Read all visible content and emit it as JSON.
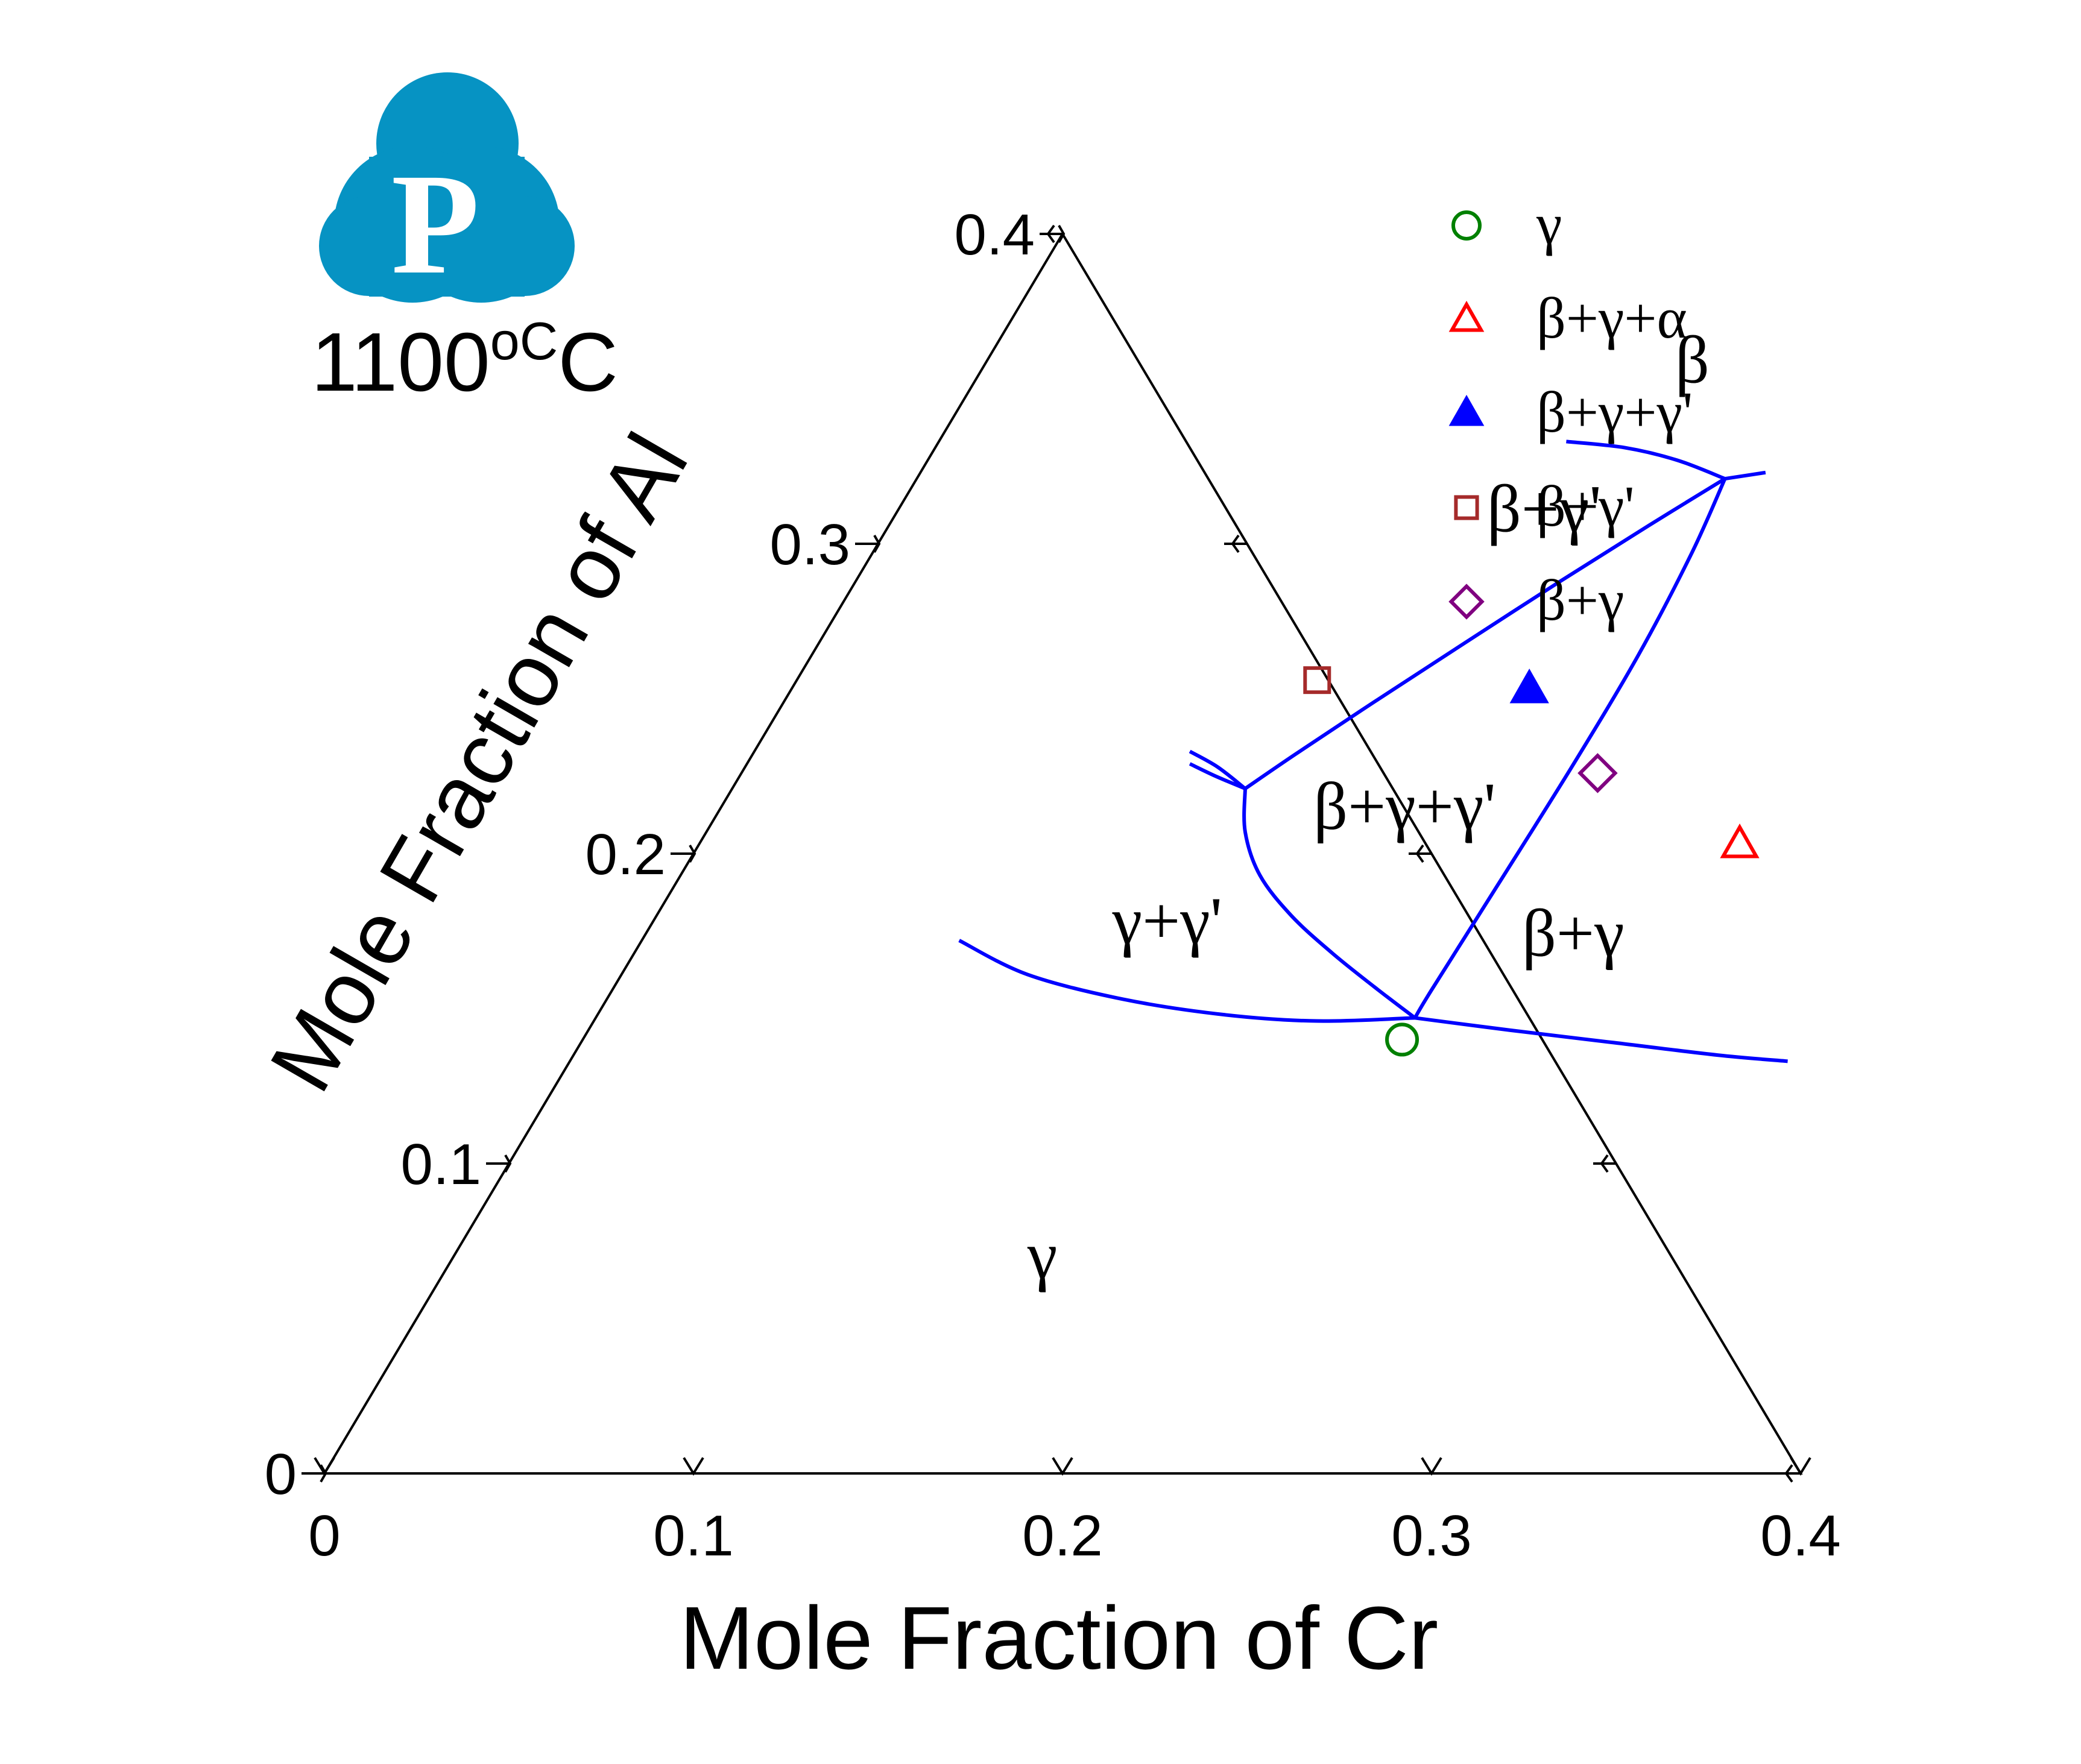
{
  "chart_data": {
    "type": "scatter",
    "subtype": "ternary-phase-diagram",
    "title": "1100°C",
    "temperature_value": "1100",
    "temperature_unit": "oC",
    "xlabel": "Mole Fraction of Cr",
    "ylabel": "Mole Fraction of Al",
    "xlim": [
      0,
      0.4
    ],
    "ylim": [
      0,
      0.4
    ],
    "x_ticks": [
      "0",
      "0.1",
      "0.2",
      "0.3",
      "0.4"
    ],
    "y_ticks": [
      "0",
      "0.1",
      "0.2",
      "0.3",
      "0.4"
    ],
    "grid": false,
    "legend_position": "top-right",
    "logo_letter": "P",
    "logo_color": "#0693c3",
    "axis_color": "#000000",
    "boundary_color": "#0000ff",
    "series": [
      {
        "name": "γ",
        "marker": "circle-open",
        "color": "#008000",
        "points": [
          {
            "cr": 0.222,
            "al": 0.14
          }
        ]
      },
      {
        "name": "β+γ+α",
        "marker": "triangle-open",
        "color": "#ff0000",
        "points": [
          {
            "cr": 0.282,
            "al": 0.203
          }
        ]
      },
      {
        "name": "β+γ+γ'",
        "marker": "triangle-filled",
        "color": "#0000ff",
        "points": [
          {
            "cr": 0.2,
            "al": 0.253
          }
        ]
      },
      {
        "name": "β+γ'",
        "marker": "square-open",
        "color": "#a52a2a",
        "points": [
          {
            "cr": 0.141,
            "al": 0.256
          }
        ]
      },
      {
        "name": "β+γ",
        "marker": "diamond-open",
        "color": "#800080",
        "points": [
          {
            "cr": 0.232,
            "al": 0.226
          }
        ]
      }
    ],
    "phase_boundaries": [
      {
        "name": "beta-upper",
        "points": [
          [
            0.17,
            0.333
          ],
          [
            0.187,
            0.331
          ],
          [
            0.203,
            0.327
          ],
          [
            0.219,
            0.321
          ]
        ]
      },
      {
        "name": "beta-right",
        "points": [
          [
            0.219,
            0.321
          ],
          [
            0.229,
            0.323
          ]
        ]
      },
      {
        "name": "tie-upper",
        "points": [
          [
            0.219,
            0.321
          ],
          [
            0.206,
            0.306
          ],
          [
            0.191,
            0.288
          ],
          [
            0.175,
            0.268
          ],
          [
            0.16,
            0.249
          ],
          [
            0.147,
            0.232
          ],
          [
            0.139,
            0.221
          ]
        ]
      },
      {
        "name": "tie-right",
        "points": [
          [
            0.219,
            0.321
          ],
          [
            0.222,
            0.297
          ],
          [
            0.224,
            0.264
          ],
          [
            0.224,
            0.228
          ],
          [
            0.223,
            0.19
          ],
          [
            0.222,
            0.156
          ],
          [
            0.222,
            0.147
          ]
        ]
      },
      {
        "name": "tie-lower",
        "points": [
          [
            0.139,
            0.221
          ],
          [
            0.146,
            0.207
          ],
          [
            0.157,
            0.193
          ],
          [
            0.172,
            0.18
          ],
          [
            0.189,
            0.168
          ],
          [
            0.206,
            0.157
          ],
          [
            0.222,
            0.147
          ]
        ]
      },
      {
        "name": "left-sliver-a",
        "points": [
          [
            0.118,
            0.233
          ],
          [
            0.128,
            0.228
          ],
          [
            0.139,
            0.221
          ]
        ]
      },
      {
        "name": "left-sliver-b",
        "points": [
          [
            0.12,
            0.229
          ],
          [
            0.129,
            0.225
          ],
          [
            0.139,
            0.221
          ]
        ]
      },
      {
        "name": "gamma-left",
        "points": [
          [
            0.086,
            0.172
          ],
          [
            0.11,
            0.161
          ],
          [
            0.14,
            0.153
          ],
          [
            0.17,
            0.148
          ],
          [
            0.196,
            0.146
          ],
          [
            0.222,
            0.147
          ]
        ]
      },
      {
        "name": "gamma-right",
        "points": [
          [
            0.222,
            0.147
          ],
          [
            0.25,
            0.143
          ],
          [
            0.28,
            0.139
          ],
          [
            0.31,
            0.135
          ],
          [
            0.33,
            0.133
          ]
        ]
      }
    ],
    "region_labels": [
      {
        "text": "β",
        "cr": 0.19,
        "al": 0.352
      },
      {
        "text": "β+γ'",
        "cr": 0.163,
        "al": 0.304
      },
      {
        "text": "β+γ+γ'",
        "cr": 0.164,
        "al": 0.208
      },
      {
        "text": "γ+γ'",
        "cr": 0.128,
        "al": 0.171
      },
      {
        "text": "β+γ",
        "cr": 0.241,
        "al": 0.167
      },
      {
        "text": "γ",
        "cr": 0.159,
        "al": 0.063
      }
    ]
  }
}
